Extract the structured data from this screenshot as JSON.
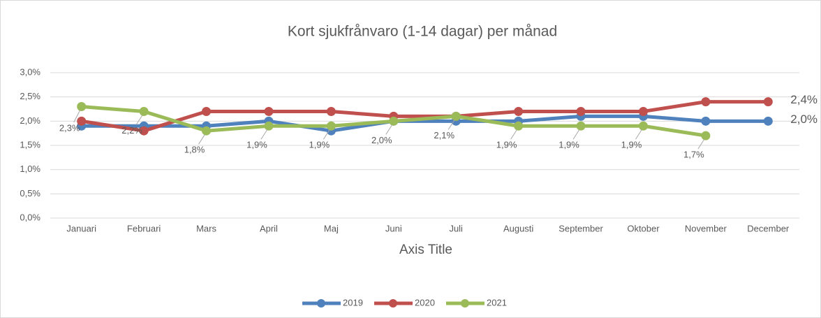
{
  "chart_data": {
    "type": "line",
    "title": "Kort sjukfrånvaro (1-14 dagar) per månad",
    "x_label": "Axis Title",
    "categories": [
      "Januari",
      "Februari",
      "Mars",
      "April",
      "Maj",
      "Juni",
      "Juli",
      "Augusti",
      "September",
      "Oktober",
      "November",
      "December"
    ],
    "series": [
      {
        "name": "2019",
        "color": "#4f81bd",
        "values": [
          1.9,
          1.9,
          1.9,
          2.0,
          1.8,
          2.0,
          2.0,
          2.0,
          2.1,
          2.1,
          2.0,
          2.0
        ],
        "value_labels": [
          null,
          null,
          null,
          null,
          null,
          null,
          null,
          null,
          null,
          null,
          null,
          "2,0%"
        ]
      },
      {
        "name": "2020",
        "color": "#c0504d",
        "values": [
          2.0,
          1.8,
          2.2,
          2.2,
          2.2,
          2.1,
          2.1,
          2.2,
          2.2,
          2.2,
          2.4,
          2.4
        ],
        "value_labels": [
          null,
          null,
          null,
          null,
          null,
          null,
          null,
          null,
          null,
          null,
          null,
          "2,4%"
        ]
      },
      {
        "name": "2021",
        "color": "#9bbb59",
        "values": [
          2.3,
          2.2,
          1.8,
          1.9,
          1.9,
          2.0,
          2.1,
          1.9,
          1.9,
          1.9,
          1.7,
          null
        ],
        "value_labels": [
          "2,3%",
          "2,2%",
          "1,8%",
          "1,9%",
          "1,9%",
          "2,0%",
          "2,1%",
          "1,9%",
          "1,9%",
          "1,9%",
          "1,7%",
          null
        ]
      }
    ],
    "ylim": [
      0,
      3
    ],
    "yticks": [
      {
        "value": 0,
        "label": "0,0%"
      },
      {
        "value": 0.5,
        "label": "0,5%"
      },
      {
        "value": 1,
        "label": "1,0%"
      },
      {
        "value": 1.5,
        "label": "1,5%"
      },
      {
        "value": 2,
        "label": "2,0%"
      },
      {
        "value": 2.5,
        "label": "2,5%"
      },
      {
        "value": 3,
        "label": "3,0%"
      }
    ],
    "grid": true,
    "legend": "bottom"
  }
}
